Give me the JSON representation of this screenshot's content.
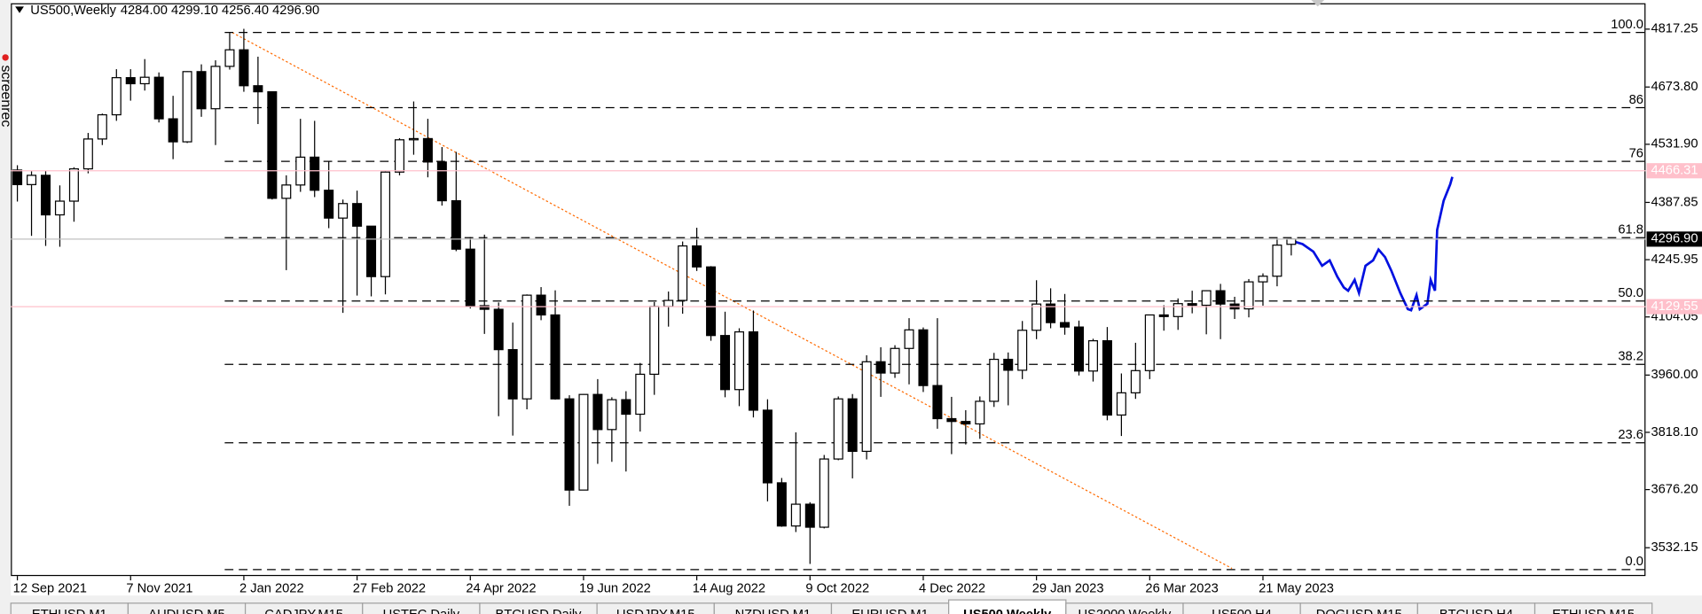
{
  "chart_data": {
    "type": "candlestick",
    "title": "US500,Weekly",
    "ohlc_text": "4284.00 4299.10 4256.40 4296.90",
    "categories": [
      "12 Sep 2021",
      null,
      null,
      null,
      null,
      null,
      null,
      null,
      "7 Nov 2021",
      null,
      null,
      null,
      null,
      null,
      null,
      null,
      "2 Jan 2022",
      null,
      null,
      null,
      null,
      null,
      null,
      null,
      "27 Feb 2022",
      null,
      null,
      null,
      null,
      null,
      null,
      null,
      "24 Apr 2022",
      null,
      null,
      null,
      null,
      null,
      null,
      null,
      "19 Jun 2022",
      null,
      null,
      null,
      null,
      null,
      null,
      null,
      "14 Aug 2022",
      null,
      null,
      null,
      null,
      null,
      null,
      null,
      "9 Oct 2022",
      null,
      null,
      null,
      null,
      null,
      null,
      null,
      "4 Dec 2022",
      null,
      null,
      null,
      null,
      null,
      null,
      null,
      "29 Jan 2023",
      null,
      null,
      null,
      null,
      null,
      null,
      null,
      "26 Mar 2023",
      null,
      null,
      null,
      null,
      null,
      null,
      null,
      "21 May 2023",
      null,
      null
    ],
    "open": [
      4468,
      4432,
      4455,
      4357,
      4391,
      4471,
      4545,
      4605,
      4697,
      4682,
      4698,
      4595,
      4538,
      4712,
      4620,
      4725,
      4766,
      4677,
      4662,
      4398,
      4431,
      4500,
      4418,
      4349,
      4385,
      4329,
      4204,
      4463,
      4543,
      4546,
      4488,
      4392,
      4272,
      4132,
      4123,
      4023,
      3901,
      4158,
      4109,
      3901,
      3675,
      3912,
      3825,
      3899,
      3863,
      3962,
      4130,
      4145,
      4280,
      4228,
      4058,
      3924,
      4067,
      3873,
      3693,
      3586,
      3640,
      3583,
      3752,
      3901,
      3771,
      3993,
      3965,
      4026,
      4072,
      3934,
      3852,
      3845,
      3839,
      3895,
      3999,
      3972,
      4071,
      4136,
      4090,
      4079,
      3970,
      4045,
      3861,
      3916,
      3971,
      4109,
      4105,
      4137,
      4133,
      4169,
      4136,
      4124,
      4191,
      4205,
      4284
    ],
    "high": [
      4480,
      4465,
      4466,
      4430,
      4475,
      4560,
      4608,
      4718,
      4718,
      4743,
      4710,
      4652,
      4713,
      4730,
      4740,
      4808,
      4818,
      4749,
      4662,
      4455,
      4595,
      4590,
      4490,
      4395,
      4417,
      4329,
      4465,
      4547,
      4638,
      4595,
      4525,
      4513,
      4302,
      4308,
      4140,
      4090,
      4160,
      4178,
      4170,
      3910,
      3913,
      3950,
      3905,
      3920,
      3990,
      4141,
      4167,
      4291,
      4325,
      4230,
      4117,
      4076,
      4120,
      3900,
      3705,
      3818,
      3645,
      3762,
      3907,
      3913,
      4009,
      4029,
      4034,
      4101,
      4078,
      4101,
      3906,
      3873,
      3907,
      4015,
      4016,
      4094,
      4195,
      4175,
      4161,
      4095,
      4050,
      4079,
      3964,
      4040,
      4110,
      4133,
      4150,
      4169,
      4170,
      4186,
      4154,
      4198,
      4212,
      4299,
      4299.1
    ],
    "low": [
      4390,
      4305,
      4280,
      4278,
      4340,
      4460,
      4530,
      4590,
      4640,
      4665,
      4586,
      4495,
      4535,
      4600,
      4530,
      4717,
      4662,
      4582,
      4395,
      4220,
      4414,
      4401,
      4324,
      4114,
      4157,
      4155,
      4160,
      4455,
      4506,
      4450,
      4380,
      4267,
      4125,
      4062,
      3858,
      3810,
      3875,
      4096,
      3899,
      3636,
      3675,
      3740,
      3745,
      3721,
      3820,
      3911,
      4080,
      4112,
      4218,
      4045,
      3905,
      3883,
      3855,
      3647,
      3584,
      3571,
      3492,
      3580,
      3749,
      3704,
      3751,
      3906,
      3953,
      3937,
      3918,
      3827,
      3764,
      3788,
      3802,
      3881,
      3885,
      3950,
      4049,
      4076,
      4060,
      3959,
      3944,
      3848,
      3809,
      3901,
      3950,
      4070,
      4072,
      4113,
      4061,
      4049,
      4099,
      4103,
      4132,
      4180,
      4256.4
    ],
    "close": [
      4432,
      4455,
      4357,
      4391,
      4471,
      4545,
      4605,
      4697,
      4682,
      4698,
      4595,
      4538,
      4712,
      4620,
      4725,
      4766,
      4677,
      4662,
      4398,
      4431,
      4500,
      4418,
      4349,
      4385,
      4329,
      4204,
      4463,
      4543,
      4546,
      4488,
      4392,
      4272,
      4132,
      4123,
      4023,
      3901,
      4158,
      4109,
      3901,
      3675,
      3912,
      3825,
      3899,
      3863,
      3962,
      4130,
      4145,
      4280,
      4228,
      4058,
      3924,
      4067,
      3873,
      3693,
      3586,
      3640,
      3583,
      3752,
      3901,
      3771,
      3993,
      3965,
      4026,
      4072,
      3934,
      3852,
      3845,
      3839,
      3895,
      3999,
      3972,
      4071,
      4136,
      4090,
      4079,
      3970,
      4045,
      3861,
      3916,
      3971,
      4109,
      4105,
      4137,
      4133,
      4169,
      4136,
      4124,
      4191,
      4205,
      4282,
      4296.9
    ],
    "up_color": "#ffffff",
    "down_color": "#000000",
    "ylim": [
      3462,
      4876
    ],
    "yticks": [
      4817.25,
      {
        "value": 4673.8,
        "label": "4673.80"
      },
      {
        "value": 4531.9,
        "label": "4531.90"
      },
      4387.85,
      4245.95,
      4104.05,
      {
        "value": 3960,
        "label": "3960.00"
      },
      {
        "value": 3818.1,
        "label": "3818.10"
      },
      {
        "value": 3676.2,
        "label": "3676.20"
      },
      3532.15
    ],
    "fibonacci": {
      "low": 3478,
      "high": 4809,
      "levels": [
        {
          "value": 100,
          "label": "100.0"
        },
        86,
        76,
        61.8,
        {
          "value": 50,
          "label": "50.0"
        },
        38.2,
        23.6,
        {
          "value": 0,
          "label": "0.0"
        }
      ]
    },
    "price_lines": [
      {
        "value": 4466.31,
        "color": "#ffc0cb"
      },
      {
        "value": 4296.9,
        "label": "4296.90",
        "color": "#000000"
      },
      {
        "value": 4129.55,
        "color": "#ffc0cb"
      }
    ]
  },
  "watermark": "screenrec",
  "tabs": [
    "ETHUSD,M1",
    "AUDUSD,M5",
    "CADJPY,M15",
    "USTEC,Daily",
    "BTCUSD,Daily",
    "USDJPY,M15",
    "NZDUSD,M1",
    "EURUSD,M1",
    "US500,Weekly",
    "US2000,Weekly",
    "US500,H4",
    "DOGUSD,M15",
    "BTCUSD,H4",
    "ETHUSD,M15"
  ],
  "active_tab": 8
}
